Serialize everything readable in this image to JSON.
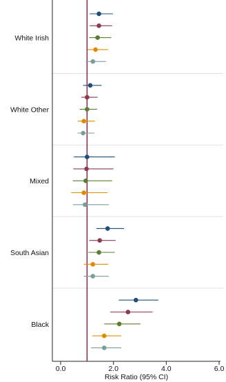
{
  "chart_data": {
    "type": "forest",
    "title": "",
    "xlabel": "Risk Ratio (95% CI)",
    "ylabel": "",
    "xlim": [
      0,
      6
    ],
    "x_ticks": [
      0,
      2,
      4,
      6
    ],
    "x_tick_labels": [
      "0.0",
      "2.0",
      "4.0",
      "6.0"
    ],
    "reference_line": 1,
    "grid": false,
    "group_separators": true,
    "legend": "none",
    "series_colors": [
      "#1f4e79",
      "#8e3a4e",
      "#5a7d32",
      "#e08a00",
      "#7a9e9a"
    ],
    "groups": [
      {
        "label": "White Irish",
        "estimates": [
          {
            "rr": 1.45,
            "lo": 1.1,
            "hi": 1.98
          },
          {
            "rr": 1.45,
            "lo": 1.1,
            "hi": 1.95
          },
          {
            "rr": 1.4,
            "lo": 1.08,
            "hi": 1.92
          },
          {
            "rr": 1.32,
            "lo": 1.02,
            "hi": 1.8
          },
          {
            "rr": 1.22,
            "lo": 0.95,
            "hi": 1.72
          }
        ]
      },
      {
        "label": "White Other",
        "estimates": [
          {
            "rr": 1.12,
            "lo": 0.85,
            "hi": 1.55
          },
          {
            "rr": 1.0,
            "lo": 0.78,
            "hi": 1.4
          },
          {
            "rr": 1.0,
            "lo": 0.72,
            "hi": 1.38
          },
          {
            "rr": 0.88,
            "lo": 0.65,
            "hi": 1.3
          },
          {
            "rr": 0.85,
            "lo": 0.64,
            "hi": 1.28
          }
        ]
      },
      {
        "label": "Mixed",
        "estimates": [
          {
            "rr": 1.0,
            "lo": 0.5,
            "hi": 2.05
          },
          {
            "rr": 0.98,
            "lo": 0.48,
            "hi": 2.0
          },
          {
            "rr": 0.95,
            "lo": 0.46,
            "hi": 1.95
          },
          {
            "rr": 0.88,
            "lo": 0.4,
            "hi": 1.78
          },
          {
            "rr": 0.92,
            "lo": 0.46,
            "hi": 1.82
          }
        ]
      },
      {
        "label": "South Asian",
        "estimates": [
          {
            "rr": 1.78,
            "lo": 1.35,
            "hi": 2.4
          },
          {
            "rr": 1.48,
            "lo": 1.08,
            "hi": 2.08
          },
          {
            "rr": 1.45,
            "lo": 1.05,
            "hi": 2.05
          },
          {
            "rr": 1.22,
            "lo": 0.88,
            "hi": 1.8
          },
          {
            "rr": 1.22,
            "lo": 0.88,
            "hi": 1.82
          }
        ]
      },
      {
        "label": "Black",
        "estimates": [
          {
            "rr": 2.85,
            "lo": 2.2,
            "hi": 3.7
          },
          {
            "rr": 2.55,
            "lo": 1.88,
            "hi": 3.48
          },
          {
            "rr": 2.22,
            "lo": 1.65,
            "hi": 3.02
          },
          {
            "rr": 1.65,
            "lo": 1.2,
            "hi": 2.3
          },
          {
            "rr": 1.65,
            "lo": 1.15,
            "hi": 2.3
          }
        ]
      }
    ]
  }
}
